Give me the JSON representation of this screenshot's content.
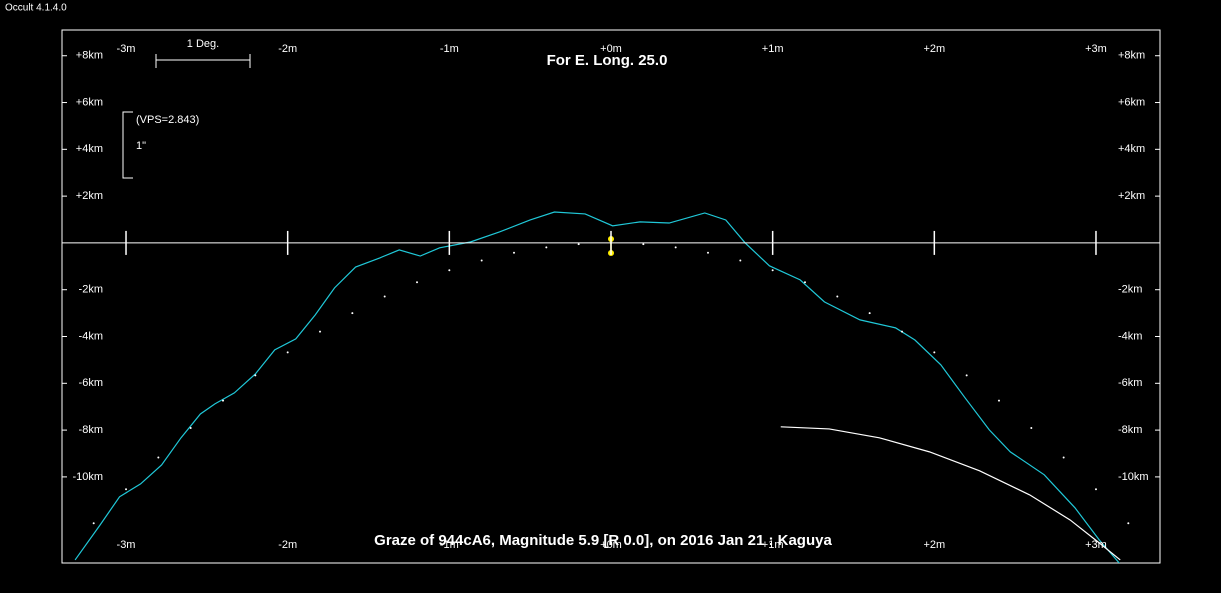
{
  "window_title": "Occult 4.1.4.0",
  "chart_data": {
    "type": "line",
    "title": "For E. Long. 25.0",
    "subtitle": "Graze of  944cA6,  Magnitude 5.9 [R 0.0],  on 2016 Jan 21 :  Kaguya",
    "annotations": [
      "1 Deg.",
      "(VPS=2.843)",
      "1\""
    ],
    "xlim": [
      -3.396,
      3.396
    ],
    "ylim": [
      -13.68,
      9.1
    ],
    "xticks": [
      {
        "value": -3,
        "label": "-3m"
      },
      {
        "value": -2,
        "label": "-2m"
      },
      {
        "value": -1,
        "label": "-1m"
      },
      {
        "value": 0,
        "label": "+0m"
      },
      {
        "value": 1,
        "label": "+1m"
      },
      {
        "value": 2,
        "label": "+2m"
      },
      {
        "value": 3,
        "label": "+3m"
      }
    ],
    "yticks": [
      {
        "value": -10,
        "label": "-10km"
      },
      {
        "value": -8,
        "label": "-8km"
      },
      {
        "value": -6,
        "label": "-6km"
      },
      {
        "value": -4,
        "label": "-4km"
      },
      {
        "value": -2,
        "label": "-2km"
      },
      {
        "value": 2,
        "label": "+2km"
      },
      {
        "value": 4,
        "label": "+4km"
      },
      {
        "value": 6,
        "label": "+6km"
      },
      {
        "value": 8,
        "label": "+8km"
      }
    ],
    "series": [
      {
        "color": "#20c8d8",
        "style": "line",
        "x": [
          -3.315,
          -3.16,
          -3.04,
          -2.91,
          -2.78,
          -2.66,
          -2.54,
          -2.45,
          -2.33,
          -2.2,
          -2.08,
          -1.95,
          -1.83,
          -1.71,
          -1.58,
          -1.43,
          -1.31,
          -1.18,
          -1.06,
          -0.87,
          -0.69,
          -0.5,
          -0.35,
          -0.16,
          0.01,
          0.18,
          0.36,
          0.58,
          0.71,
          0.83,
          0.98,
          1.17,
          1.32,
          1.54,
          1.76,
          1.88,
          2.04,
          2.19,
          2.34,
          2.47,
          2.68,
          2.87,
          3.02,
          3.18
        ],
        "values": [
          -13.55,
          -12.05,
          -10.85,
          -10.3,
          -9.49,
          -8.33,
          -7.31,
          -6.88,
          -6.41,
          -5.6,
          -4.57,
          -4.1,
          -3.08,
          -1.92,
          -1.03,
          -0.64,
          -0.3,
          -0.56,
          -0.21,
          0.04,
          0.47,
          0.98,
          1.32,
          1.24,
          0.73,
          0.9,
          0.85,
          1.28,
          0.98,
          0.0,
          -0.98,
          -1.58,
          -2.52,
          -3.29,
          -3.63,
          -4.15,
          -5.21,
          -6.62,
          -7.99,
          -8.93,
          -9.91,
          -11.32,
          -12.69,
          -13.97
        ]
      },
      {
        "color": "#ffffff",
        "style": "dots",
        "x": [
          -3.2,
          -3.0,
          -2.8,
          -2.6,
          -2.4,
          -2.2,
          -2.0,
          -1.8,
          -1.6,
          -1.4,
          -1.2,
          -1.0,
          -0.8,
          -0.6,
          -0.4,
          -0.2,
          0,
          0.2,
          0.4,
          0.6,
          0.8,
          1.0,
          1.2,
          1.4,
          1.6,
          1.8,
          2.0,
          2.2,
          2.4,
          2.6,
          2.8,
          3.0,
          3.2
        ],
        "values": [
          -11.98,
          -10.53,
          -9.17,
          -7.91,
          -6.74,
          -5.66,
          -4.68,
          -3.79,
          -3.0,
          -2.29,
          -1.68,
          -1.17,
          -0.75,
          -0.42,
          -0.19,
          -0.05,
          0,
          -0.05,
          -0.19,
          -0.42,
          -0.75,
          -1.17,
          -1.68,
          -2.29,
          -3.0,
          -3.79,
          -4.68,
          -5.66,
          -6.74,
          -7.91,
          -9.17,
          -10.53,
          -11.98
        ]
      },
      {
        "color": "#ffffff",
        "style": "line",
        "x": [
          1.05,
          1.35,
          1.66,
          1.97,
          2.28,
          2.59,
          2.84,
          3.02,
          3.15
        ],
        "values": [
          -7.86,
          -7.95,
          -8.33,
          -8.93,
          -9.74,
          -10.77,
          -11.84,
          -12.82,
          -13.55
        ]
      },
      {
        "color": "#ffee00",
        "style": "line-points",
        "x": [
          0,
          0
        ],
        "values": [
          0.17,
          -0.43
        ]
      }
    ]
  }
}
